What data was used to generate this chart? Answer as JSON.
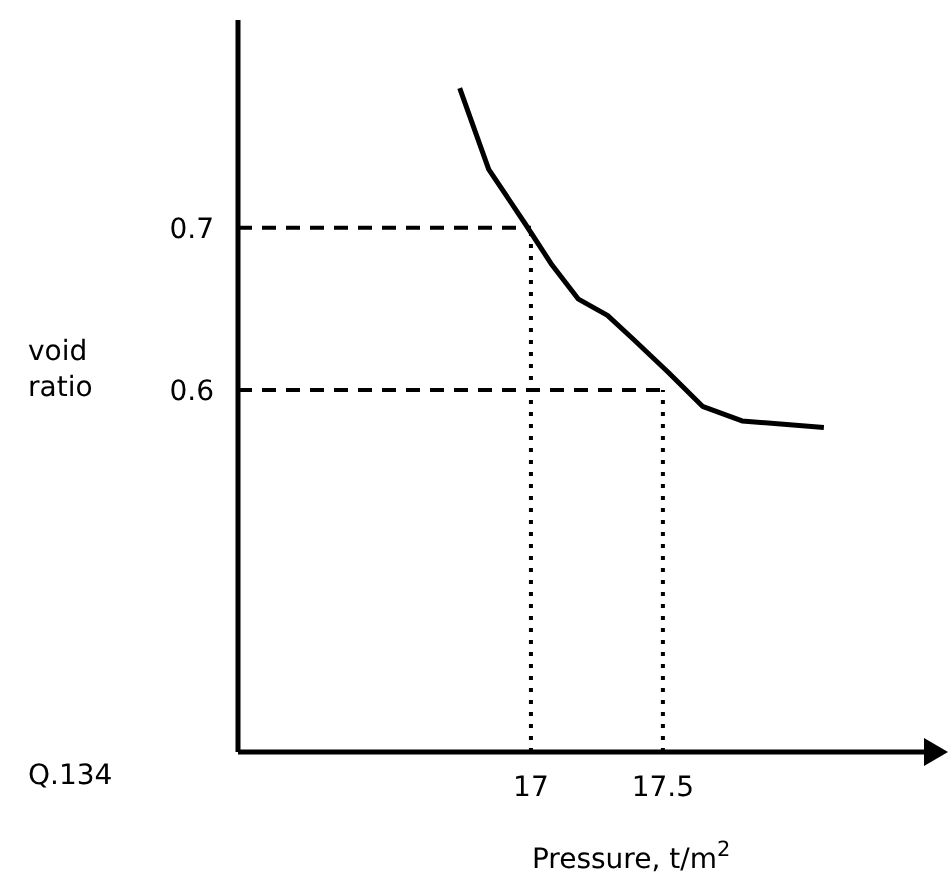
{
  "chart_data": {
    "type": "line",
    "xlabel": "Pressure, t/m$^{2}$",
    "ylabel": "void\nratio",
    "annotations": [
      "Q.134"
    ],
    "x": [
      16.73,
      16.84,
      16.98,
      17.08,
      17.18,
      17.29,
      17.39,
      17.52,
      17.65,
      17.8,
      18.11
    ],
    "series": [
      {
        "color": "#000000",
        "values": [
          0.786,
          0.736,
          0.702,
          0.677,
          0.656,
          0.646,
          0.631,
          0.611,
          0.59,
          0.581,
          0.577
        ]
      }
    ],
    "xlim": [
      15.89,
      18.55
    ],
    "ylim": [
      0.377,
      0.828
    ],
    "xticks": [
      17,
      17.5
    ],
    "yticks": [
      0.6,
      0.7
    ],
    "ref_lines": [
      {
        "axis": "y",
        "value": 0.7,
        "line_style": "dashed"
      },
      {
        "axis": "y",
        "value": 0.6,
        "line_style": "dashed"
      },
      {
        "axis": "x",
        "value": 17,
        "line_style": "dotted"
      },
      {
        "axis": "x",
        "value": 17.5,
        "line_style": "dotted"
      }
    ],
    "grid": false,
    "legend": false,
    "marker": "none",
    "line_style": "solid"
  }
}
